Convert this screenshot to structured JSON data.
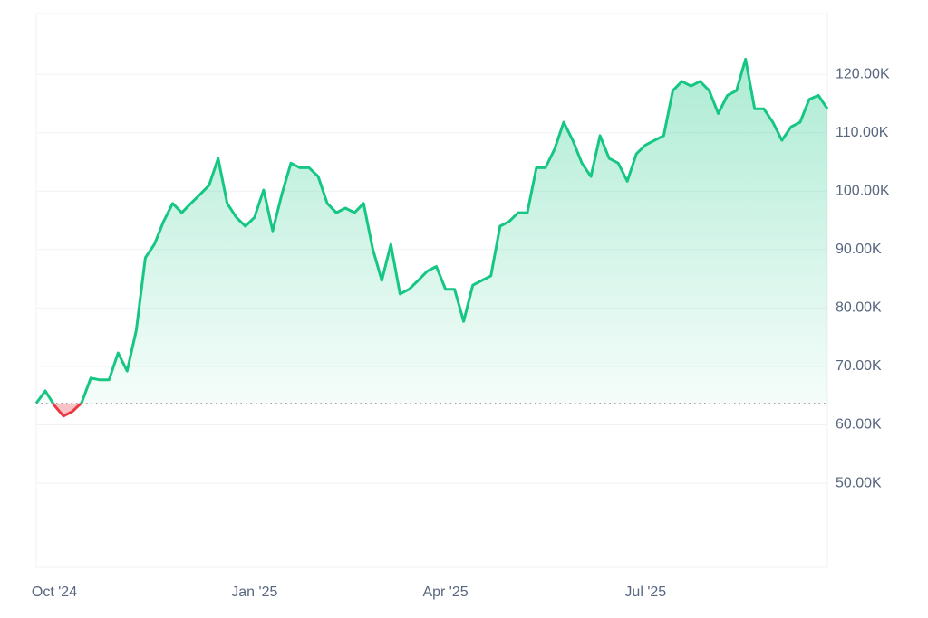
{
  "chart_data": {
    "type": "line",
    "categories": [
      "Oct '24",
      null,
      null,
      null,
      null,
      null,
      null,
      null,
      null,
      null,
      null,
      null,
      null,
      null,
      null,
      null,
      null,
      null,
      null,
      null,
      null,
      null,
      null,
      null,
      "Jan '25",
      null,
      null,
      null,
      null,
      null,
      null,
      null,
      null,
      null,
      null,
      null,
      null,
      null,
      null,
      null,
      null,
      null,
      null,
      null,
      null,
      "Apr '25",
      null,
      null,
      null,
      null,
      null,
      null,
      null,
      null,
      null,
      null,
      null,
      null,
      null,
      null,
      null,
      null,
      null,
      null,
      null,
      null,
      null,
      "Jul '25",
      null,
      null,
      null,
      null,
      null,
      null,
      null,
      null,
      null,
      null,
      null,
      null,
      null,
      null,
      null,
      null,
      null,
      null,
      null,
      null
    ],
    "series": [
      {
        "color": "#16c784",
        "below_color": "#ea3943",
        "values": [
          63700,
          65800,
          63300,
          61500,
          62300,
          63800,
          68000,
          67700,
          67700,
          72300,
          69200,
          76200,
          88600,
          90900,
          94800,
          97900,
          96300,
          97900,
          99400,
          101000,
          105600,
          97900,
          95500,
          94000,
          95500,
          100200,
          93200,
          99400,
          104800,
          104000,
          104000,
          102500,
          97900,
          96300,
          97100,
          96300,
          97900,
          90100,
          84700,
          90900,
          82400,
          83200,
          84700,
          86300,
          87100,
          83200,
          83200,
          77700,
          83900,
          84700,
          85500,
          94000,
          94800,
          96300,
          96300,
          104000,
          104000,
          107200,
          111800,
          108700,
          104800,
          102500,
          109500,
          105600,
          104800,
          101700,
          106400,
          107900,
          108700,
          109500,
          117200,
          118800,
          118000,
          118800,
          117200,
          113300,
          116400,
          117200,
          122600,
          114100,
          114100,
          111800,
          108700,
          111000,
          111800,
          115700,
          116400,
          114100
        ]
      }
    ],
    "ylim": [
      35600,
      130400
    ],
    "yticks": [
      {
        "value": 50000,
        "label": "50.00K"
      },
      {
        "value": 60000,
        "label": "60.00K"
      },
      {
        "value": 70000,
        "label": "70.00K"
      },
      {
        "value": 80000,
        "label": "80.00K"
      },
      {
        "value": 90000,
        "label": "90.00K"
      },
      {
        "value": 100000,
        "label": "100.00K"
      },
      {
        "value": 110000,
        "label": "110.00K"
      },
      {
        "value": 120000,
        "label": "120.00K"
      }
    ],
    "grid": true
  }
}
